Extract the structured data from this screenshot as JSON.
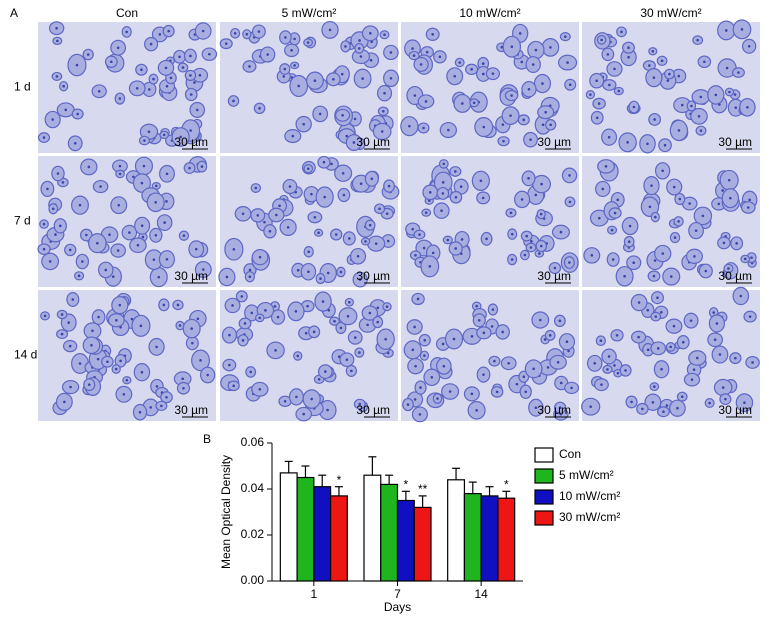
{
  "figure": {
    "panel_a_label": "A",
    "panel_b_label": "B",
    "columns": [
      "Con",
      "5 mW/cm²",
      "10 mW/cm²",
      "30 mW/cm²"
    ],
    "rows": [
      "1 d",
      "7 d",
      "14 d"
    ],
    "scale_bar": "30 µm"
  },
  "chart_data": {
    "type": "bar",
    "xlabel": "Days",
    "ylabel": "Mean Optical Density",
    "categories": [
      "1",
      "7",
      "14"
    ],
    "ylim": [
      0,
      0.06
    ],
    "yticks": [
      {
        "value": 0,
        "label": "0.00"
      },
      {
        "value": 0.02,
        "label": "0.02"
      },
      {
        "value": 0.04,
        "label": "0.04"
      },
      {
        "value": 0.06,
        "label": "0.06"
      }
    ],
    "legend": "right",
    "series": [
      {
        "name": "Con",
        "color": "#ffffff",
        "values": [
          0.047,
          0.046,
          0.044
        ],
        "errors": [
          0.005,
          0.008,
          0.005
        ],
        "significance": [
          null,
          null,
          null
        ]
      },
      {
        "name": "5 mW/cm²",
        "color": "#1fb51f",
        "values": [
          0.045,
          0.042,
          0.038
        ],
        "errors": [
          0.005,
          0.004,
          0.005
        ],
        "significance": [
          null,
          null,
          null
        ]
      },
      {
        "name": "10 mW/cm²",
        "color": "#1010c0",
        "values": [
          0.041,
          0.035,
          0.037
        ],
        "errors": [
          0.005,
          0.004,
          0.004
        ],
        "significance": [
          null,
          "*",
          null
        ]
      },
      {
        "name": "30 mW/cm²",
        "color": "#ee1515",
        "values": [
          0.037,
          0.032,
          0.036
        ],
        "errors": [
          0.004,
          0.005,
          0.003
        ],
        "significance": [
          "*",
          "**",
          "*"
        ]
      }
    ]
  }
}
